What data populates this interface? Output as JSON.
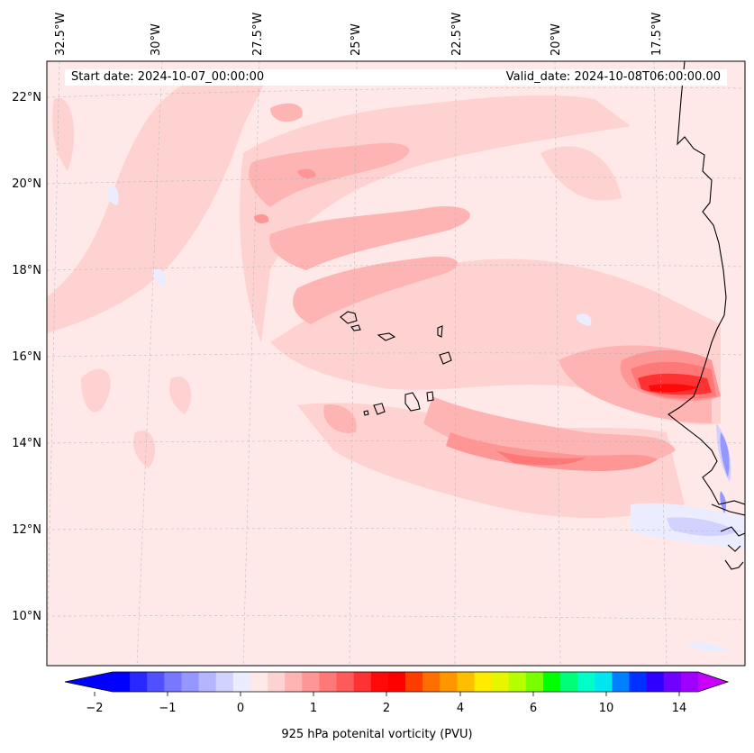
{
  "header": {
    "start_date": "Start date: 2024-10-07_00:00:00",
    "valid_date": "Valid_date: 2024-10-08T06:00:00.00"
  },
  "map": {
    "lon_labels": [
      "32.5°W",
      "30°W",
      "27.5°W",
      "25°W",
      "22.5°W",
      "20°W",
      "17.5°W"
    ],
    "lat_labels": [
      "22°N",
      "20°N",
      "18°N",
      "16°N",
      "14°N",
      "12°N",
      "10°N"
    ],
    "gridlines": true,
    "coastline_color": "#000000"
  },
  "colorbar": {
    "label": "925 hPa potenital vorticity (PVU)",
    "tick_labels": [
      "−2",
      "−1",
      "0",
      "1",
      "2",
      "4",
      "6",
      "10",
      "14"
    ],
    "extend": "both",
    "colors": [
      "#0000ff",
      "#2828ff",
      "#5050ff",
      "#7878ff",
      "#9696ff",
      "#b4b4ff",
      "#d2d2ff",
      "#ececff",
      "#ffe8e8",
      "#ffd2d2",
      "#ffb4b4",
      "#ff9696",
      "#ff7878",
      "#ff5a5a",
      "#ff3232",
      "#ff0a0a",
      "#ff0000",
      "#ff3c00",
      "#ff6e00",
      "#ff9600",
      "#ffbe00",
      "#ffeb00",
      "#e6f500",
      "#b4ff00",
      "#78ff00",
      "#00ff00",
      "#00ff78",
      "#00ffc8",
      "#00e6f0",
      "#0080ff",
      "#0030ff",
      "#3000ff",
      "#7000ff",
      "#a000ff"
    ],
    "under_color": "#0000ff",
    "over_color": "#c800ff"
  }
}
